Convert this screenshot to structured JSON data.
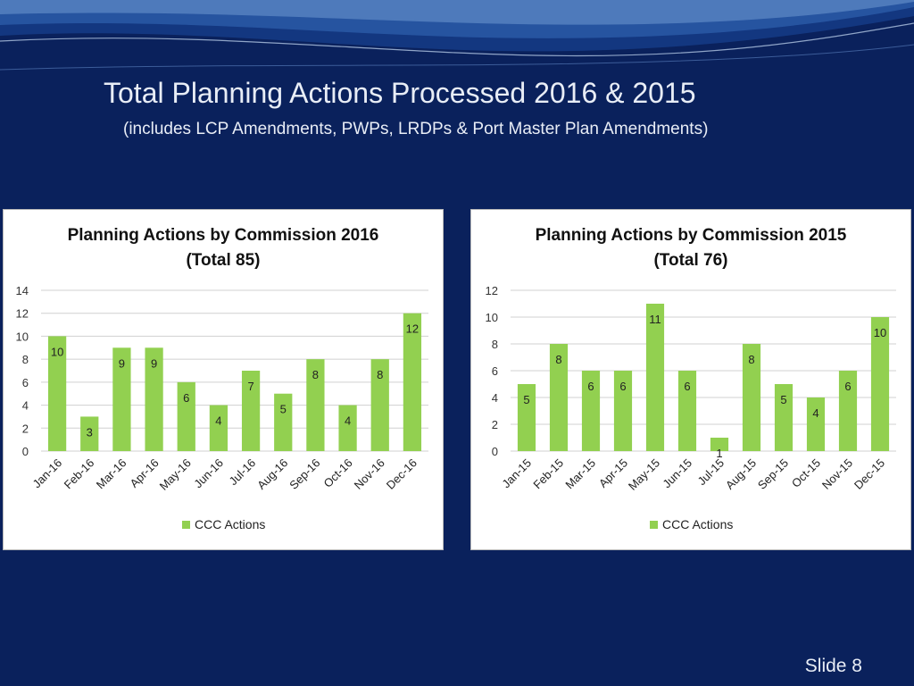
{
  "slide": {
    "title": "Total Planning Actions Processed 2016 & 2015",
    "subtitle": "(includes LCP Amendments, PWPs, LRDPs & Port Master Plan Amendments)",
    "slide_number": "Slide 8"
  },
  "colors": {
    "background": "#0a215c",
    "bar": "#92d050",
    "text": "#e8edf6"
  },
  "chart_data": [
    {
      "type": "bar",
      "title": [
        "Planning Actions by Commission 2016",
        "(Total 85)"
      ],
      "categories": [
        "Jan-16",
        "Feb-16",
        "Mar-16",
        "Apr-16",
        "May-16",
        "Jun-16",
        "Jul-16",
        "Aug-16",
        "Sep-16",
        "Oct-16",
        "Nov-16",
        "Dec-16"
      ],
      "series": [
        {
          "name": "CCC Actions",
          "values": [
            10,
            3,
            9,
            9,
            6,
            4,
            7,
            5,
            8,
            4,
            8,
            12
          ]
        }
      ],
      "ylim": [
        0,
        14
      ],
      "yticks": [
        0,
        2,
        4,
        6,
        8,
        10,
        12,
        14
      ],
      "grid": true,
      "legend": "bottom",
      "data_labels": true
    },
    {
      "type": "bar",
      "title": [
        "Planning Actions by Commission 2015",
        "(Total 76)"
      ],
      "categories": [
        "Jan-15",
        "Feb-15",
        "Mar-15",
        "Apr-15",
        "May-15",
        "Jun-15",
        "Jul-15",
        "Aug-15",
        "Sep-15",
        "Oct-15",
        "Nov-15",
        "Dec-15"
      ],
      "series": [
        {
          "name": "CCC Actions",
          "values": [
            5,
            8,
            6,
            6,
            11,
            6,
            1,
            8,
            5,
            4,
            6,
            10
          ]
        }
      ],
      "ylim": [
        0,
        12
      ],
      "yticks": [
        0,
        2,
        4,
        6,
        8,
        10,
        12
      ],
      "grid": true,
      "legend": "bottom",
      "data_labels": true
    }
  ]
}
